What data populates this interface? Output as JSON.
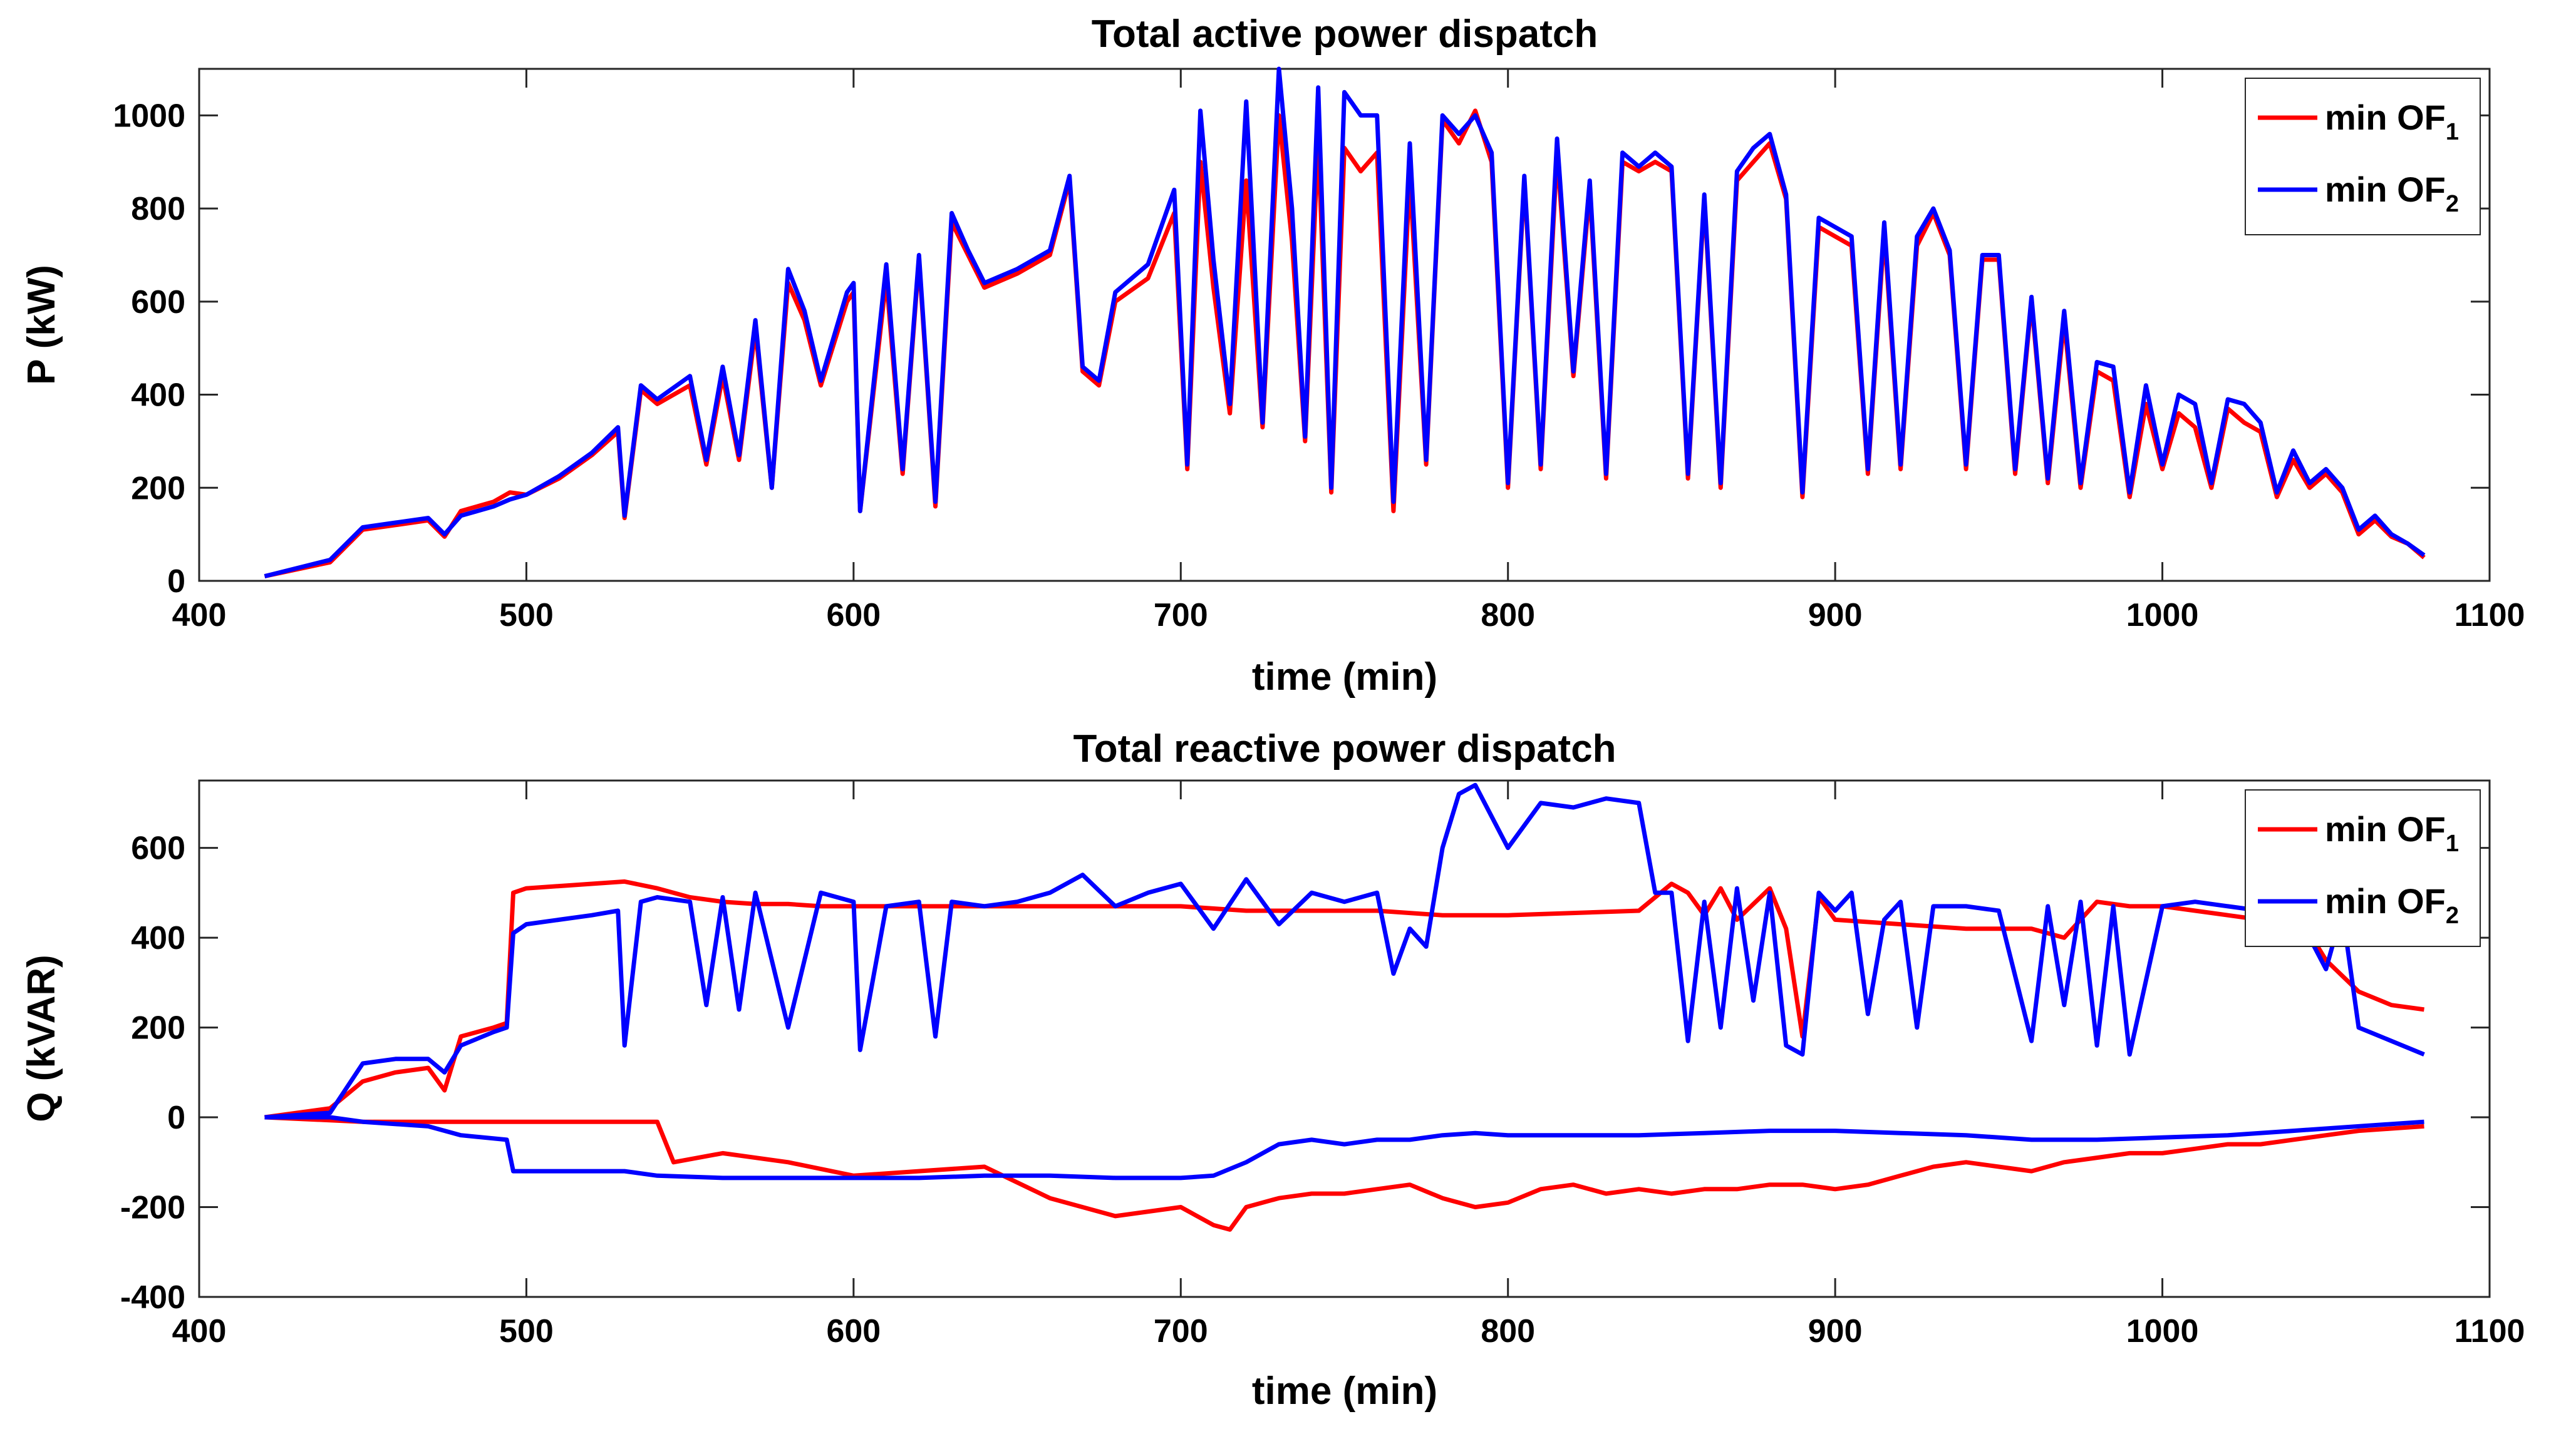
{
  "chart_data": [
    {
      "type": "line",
      "title": "Total active power dispatch",
      "xlabel": "time (min)",
      "ylabel": "P (kW)",
      "xlim": [
        400,
        1100
      ],
      "ylim": [
        0,
        1100
      ],
      "xticks": [
        400,
        500,
        600,
        700,
        800,
        900,
        1000,
        1100
      ],
      "yticks": [
        0,
        200,
        400,
        600,
        800,
        1000
      ],
      "legend_position": "top-right",
      "legend": [
        {
          "base": "min OF",
          "sub": "1"
        },
        {
          "base": "min OF",
          "sub": "2"
        }
      ],
      "series": [
        {
          "name": "min OF1",
          "color": "#ff0000",
          "x": [
            420,
            440,
            450,
            460,
            470,
            475,
            480,
            490,
            495,
            500,
            510,
            520,
            528,
            530,
            535,
            540,
            550,
            555,
            560,
            565,
            570,
            575,
            580,
            585,
            590,
            598,
            600,
            602,
            610,
            615,
            620,
            625,
            630,
            635,
            640,
            650,
            660,
            666,
            670,
            675,
            680,
            690,
            698,
            702,
            706,
            710,
            715,
            720,
            725,
            730,
            734,
            738,
            742,
            746,
            750,
            755,
            760,
            765,
            770,
            775,
            780,
            785,
            790,
            795,
            800,
            805,
            810,
            815,
            820,
            825,
            830,
            835,
            840,
            845,
            850,
            855,
            860,
            865,
            870,
            875,
            880,
            885,
            890,
            895,
            900,
            905,
            910,
            915,
            920,
            925,
            930,
            935,
            940,
            945,
            950,
            955,
            960,
            965,
            970,
            975,
            980,
            985,
            990,
            995,
            1000,
            1005,
            1010,
            1015,
            1020,
            1025,
            1030,
            1035,
            1040,
            1045,
            1050,
            1055,
            1060,
            1065,
            1070,
            1075,
            1080
          ],
          "values": [
            10,
            40,
            110,
            120,
            130,
            95,
            150,
            170,
            190,
            185,
            220,
            270,
            320,
            135,
            410,
            380,
            420,
            250,
            440,
            260,
            540,
            200,
            640,
            560,
            420,
            600,
            620,
            150,
            650,
            230,
            690,
            160,
            770,
            700,
            630,
            660,
            700,
            860,
            450,
            420,
            600,
            650,
            790,
            240,
            900,
            630,
            360,
            860,
            330,
            1000,
            730,
            300,
            950,
            190,
            930,
            880,
            920,
            150,
            870,
            250,
            990,
            940,
            1010,
            900,
            200,
            860,
            240,
            920,
            440,
            840,
            220,
            900,
            880,
            900,
            880,
            220,
            820,
            200,
            860,
            900,
            940,
            820,
            180,
            760,
            740,
            720,
            230,
            750,
            240,
            720,
            790,
            700,
            240,
            690,
            690,
            230,
            600,
            210,
            560,
            200,
            450,
            430,
            180,
            380,
            240,
            360,
            330,
            200,
            370,
            340,
            320,
            180,
            260,
            200,
            230,
            190,
            100,
            130,
            95,
            80,
            50
          ]
        },
        {
          "name": "min OF2",
          "color": "#0000ff",
          "x": [
            420,
            440,
            450,
            460,
            470,
            475,
            480,
            490,
            495,
            500,
            510,
            520,
            528,
            530,
            535,
            540,
            550,
            555,
            560,
            565,
            570,
            575,
            580,
            585,
            590,
            598,
            600,
            602,
            610,
            615,
            620,
            625,
            630,
            635,
            640,
            650,
            660,
            666,
            670,
            675,
            680,
            690,
            698,
            702,
            706,
            710,
            715,
            720,
            725,
            730,
            734,
            738,
            742,
            746,
            750,
            755,
            760,
            765,
            770,
            775,
            780,
            785,
            790,
            795,
            800,
            805,
            810,
            815,
            820,
            825,
            830,
            835,
            840,
            845,
            850,
            855,
            860,
            865,
            870,
            875,
            880,
            885,
            890,
            895,
            900,
            905,
            910,
            915,
            920,
            925,
            930,
            935,
            940,
            945,
            950,
            955,
            960,
            965,
            970,
            975,
            980,
            985,
            990,
            995,
            1000,
            1005,
            1010,
            1015,
            1020,
            1025,
            1030,
            1035,
            1040,
            1045,
            1050,
            1055,
            1060,
            1065,
            1070,
            1075,
            1080
          ],
          "values": [
            10,
            45,
            115,
            125,
            135,
            100,
            140,
            160,
            175,
            185,
            225,
            275,
            330,
            140,
            420,
            390,
            440,
            260,
            460,
            270,
            560,
            200,
            670,
            580,
            430,
            620,
            640,
            150,
            680,
            240,
            700,
            170,
            790,
            710,
            640,
            670,
            710,
            870,
            460,
            430,
            620,
            680,
            840,
            250,
            1010,
            690,
            380,
            1030,
            340,
            1100,
            800,
            310,
            1060,
            200,
            1050,
            1000,
            1000,
            170,
            940,
            260,
            1000,
            960,
            1000,
            920,
            210,
            870,
            250,
            950,
            450,
            860,
            230,
            920,
            890,
            920,
            890,
            230,
            830,
            210,
            880,
            930,
            960,
            830,
            190,
            780,
            760,
            740,
            240,
            770,
            250,
            740,
            800,
            710,
            250,
            700,
            700,
            240,
            610,
            220,
            580,
            210,
            470,
            460,
            190,
            420,
            250,
            400,
            380,
            210,
            390,
            380,
            340,
            190,
            280,
            210,
            240,
            200,
            110,
            140,
            100,
            80,
            55
          ]
        }
      ]
    },
    {
      "type": "line",
      "title": "Total reactive power dispatch",
      "xlabel": "time (min)",
      "ylabel": "Q (kVAR)",
      "xlim": [
        400,
        1100
      ],
      "ylim": [
        -400,
        750
      ],
      "xticks": [
        400,
        500,
        600,
        700,
        800,
        900,
        1000,
        1100
      ],
      "yticks": [
        -400,
        -200,
        0,
        200,
        400,
        600
      ],
      "legend_position": "top-right",
      "legend": [
        {
          "base": "min OF",
          "sub": "1"
        },
        {
          "base": "min OF",
          "sub": "2"
        }
      ],
      "series": [
        {
          "name": "min OF1 (upper)",
          "color": "#ff0000",
          "x": [
            420,
            440,
            450,
            460,
            470,
            475,
            480,
            490,
            494,
            496,
            500,
            510,
            520,
            530,
            540,
            550,
            560,
            570,
            580,
            590,
            600,
            620,
            640,
            660,
            680,
            700,
            720,
            740,
            760,
            780,
            800,
            820,
            840,
            850,
            855,
            860,
            865,
            870,
            880,
            885,
            890,
            895,
            900,
            920,
            940,
            960,
            970,
            980,
            990,
            1000,
            1010,
            1020,
            1030,
            1040,
            1050,
            1060,
            1070,
            1080
          ],
          "values": [
            0,
            20,
            80,
            100,
            110,
            60,
            180,
            200,
            210,
            500,
            510,
            515,
            520,
            525,
            510,
            490,
            480,
            475,
            475,
            470,
            470,
            470,
            470,
            470,
            470,
            470,
            460,
            460,
            460,
            450,
            450,
            455,
            460,
            520,
            500,
            450,
            510,
            440,
            510,
            420,
            180,
            490,
            440,
            430,
            420,
            420,
            400,
            480,
            470,
            470,
            460,
            450,
            440,
            470,
            350,
            280,
            250,
            240
          ]
        },
        {
          "name": "min OF2 (upper)",
          "color": "#0000ff",
          "x": [
            420,
            440,
            450,
            460,
            470,
            475,
            480,
            490,
            494,
            496,
            500,
            510,
            520,
            528,
            530,
            535,
            540,
            550,
            555,
            560,
            565,
            570,
            580,
            590,
            600,
            602,
            610,
            620,
            625,
            630,
            640,
            650,
            660,
            670,
            680,
            690,
            700,
            710,
            720,
            730,
            740,
            750,
            760,
            765,
            770,
            775,
            780,
            785,
            790,
            800,
            810,
            820,
            830,
            840,
            845,
            850,
            855,
            860,
            865,
            870,
            875,
            880,
            885,
            890,
            895,
            900,
            905,
            910,
            915,
            920,
            925,
            930,
            940,
            950,
            960,
            965,
            970,
            975,
            980,
            985,
            990,
            1000,
            1010,
            1020,
            1030,
            1040,
            1050,
            1055,
            1060,
            1070,
            1080
          ],
          "values": [
            0,
            10,
            120,
            130,
            130,
            100,
            160,
            190,
            200,
            410,
            430,
            440,
            450,
            460,
            160,
            480,
            490,
            480,
            250,
            490,
            240,
            500,
            200,
            500,
            480,
            150,
            470,
            480,
            180,
            480,
            470,
            480,
            500,
            540,
            470,
            500,
            520,
            420,
            530,
            430,
            500,
            480,
            500,
            320,
            420,
            380,
            600,
            720,
            740,
            600,
            700,
            690,
            710,
            700,
            500,
            500,
            170,
            480,
            200,
            510,
            260,
            500,
            160,
            140,
            500,
            460,
            500,
            230,
            440,
            480,
            200,
            470,
            470,
            460,
            170,
            470,
            250,
            480,
            160,
            470,
            140,
            470,
            480,
            470,
            460,
            470,
            330,
            460,
            200,
            170,
            140
          ]
        },
        {
          "name": "min OF1 (lower)",
          "color": "#ff0000",
          "x": [
            420,
            450,
            480,
            540,
            545,
            560,
            580,
            600,
            620,
            640,
            660,
            680,
            700,
            710,
            715,
            720,
            730,
            740,
            750,
            760,
            770,
            780,
            790,
            800,
            810,
            820,
            830,
            840,
            850,
            860,
            870,
            880,
            890,
            900,
            910,
            920,
            930,
            940,
            950,
            960,
            970,
            980,
            990,
            1000,
            1010,
            1020,
            1030,
            1040,
            1050,
            1060,
            1070,
            1080
          ],
          "values": [
            0,
            -10,
            -10,
            -10,
            -100,
            -80,
            -100,
            -130,
            -120,
            -110,
            -180,
            -220,
            -200,
            -240,
            -250,
            -200,
            -180,
            -170,
            -170,
            -160,
            -150,
            -180,
            -200,
            -190,
            -160,
            -150,
            -170,
            -160,
            -170,
            -160,
            -160,
            -150,
            -150,
            -160,
            -150,
            -130,
            -110,
            -100,
            -110,
            -120,
            -100,
            -90,
            -80,
            -80,
            -70,
            -60,
            -60,
            -50,
            -40,
            -30,
            -25,
            -20
          ]
        },
        {
          "name": "min OF2 (lower)",
          "color": "#0000ff",
          "x": [
            420,
            440,
            450,
            470,
            480,
            494,
            496,
            520,
            528,
            530,
            540,
            560,
            580,
            600,
            620,
            640,
            660,
            680,
            700,
            710,
            720,
            730,
            740,
            750,
            760,
            770,
            780,
            790,
            800,
            820,
            840,
            860,
            880,
            900,
            920,
            940,
            960,
            980,
            1000,
            1020,
            1040,
            1060,
            1080
          ],
          "values": [
            0,
            0,
            -10,
            -20,
            -40,
            -50,
            -120,
            -120,
            -120,
            -120,
            -130,
            -135,
            -135,
            -135,
            -135,
            -130,
            -130,
            -135,
            -135,
            -130,
            -100,
            -60,
            -50,
            -60,
            -50,
            -50,
            -40,
            -35,
            -40,
            -40,
            -40,
            -35,
            -30,
            -30,
            -35,
            -40,
            -50,
            -50,
            -45,
            -40,
            -30,
            -20,
            -10
          ]
        }
      ]
    }
  ]
}
